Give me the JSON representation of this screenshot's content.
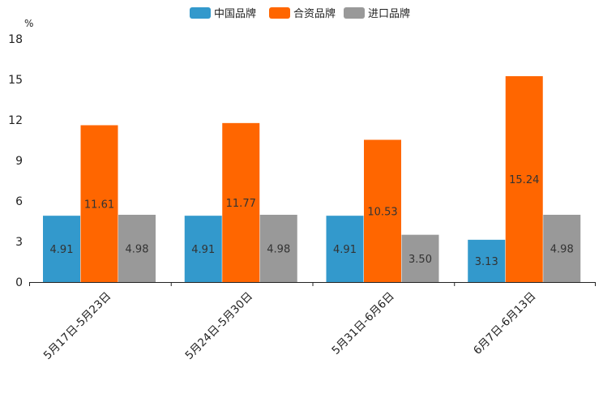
{
  "chart_data": {
    "type": "bar",
    "title": "",
    "xlabel": "",
    "ylabel": "%",
    "ylim": [
      0,
      18
    ],
    "yticks": [
      0,
      3,
      6,
      9,
      12,
      15,
      18
    ],
    "grid": false,
    "legend_position": "top-center",
    "categories": [
      "5月17日-5月23日",
      "5月24日-5月30日",
      "5月31日-6月6日",
      "6月7日-6月13日"
    ],
    "series": [
      {
        "name": "中国品牌",
        "color": "#3399cc",
        "values": [
          4.91,
          4.91,
          4.91,
          3.13
        ],
        "labels": [
          "4.91",
          "4.91",
          "4.91",
          "3.13"
        ]
      },
      {
        "name": "合资品牌",
        "color": "#ff6600",
        "values": [
          11.61,
          11.77,
          10.53,
          15.24
        ],
        "labels": [
          "11.61",
          "11.77",
          "10.53",
          "15.24"
        ]
      },
      {
        "name": "进口品牌",
        "color": "#999999",
        "values": [
          4.98,
          4.98,
          3.5,
          4.98
        ],
        "labels": [
          "4.98",
          "4.98",
          "3.50",
          "4.98"
        ]
      }
    ]
  }
}
